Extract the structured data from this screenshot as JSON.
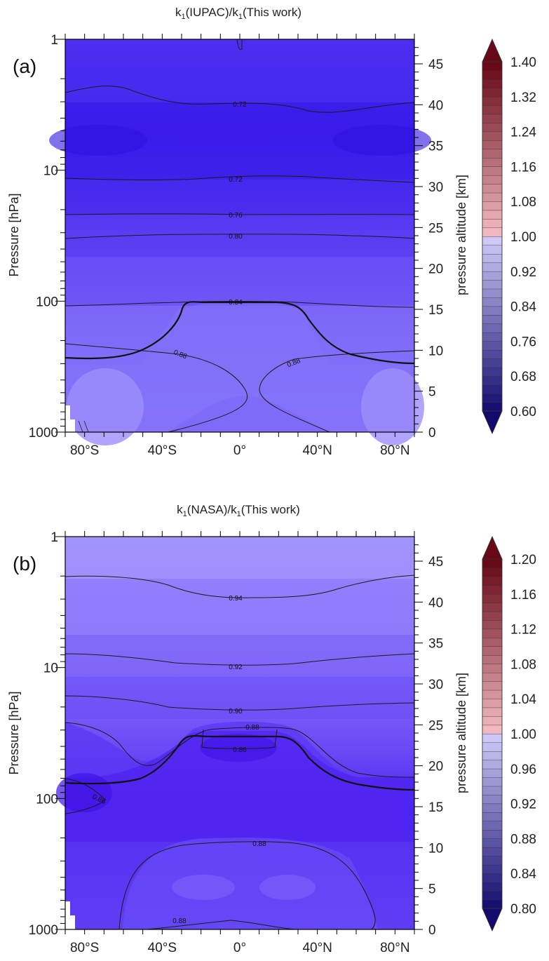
{
  "chart_data": [
    {
      "type": "heatmap",
      "panel_label": "(a)",
      "title_parts": {
        "k": "k",
        "sub": "1",
        "numerator": "(IUPAC)/",
        "denominator": "(This work)"
      },
      "xlabel": "",
      "ylabel": "Pressure [hPa]",
      "y2label": "pressure altitude [km]",
      "xlim": [
        -90,
        90
      ],
      "x_ticks": [
        -80,
        -40,
        0,
        40,
        80
      ],
      "x_tick_labels": [
        "80°S",
        "40°S",
        "0°",
        "40°N",
        "80°N"
      ],
      "ylim": [
        1000,
        1
      ],
      "y_scale": "log",
      "y_ticks": [
        1,
        10,
        100,
        1000
      ],
      "y_tick_labels": [
        "1",
        "10",
        "100",
        "1000"
      ],
      "y2_ticks": [
        0,
        5,
        10,
        15,
        20,
        25,
        30,
        35,
        40,
        45
      ],
      "y2_tick_labels": [
        "0",
        "5",
        "10",
        "15",
        "20",
        "25",
        "30",
        "35",
        "40",
        "45"
      ],
      "colorbar": {
        "min": 0.6,
        "max": 1.4,
        "step": 0.02,
        "tick_values": [
          0.6,
          0.68,
          0.76,
          0.84,
          0.92,
          1.0,
          1.08,
          1.16,
          1.24,
          1.32,
          1.4
        ],
        "tick_labels": [
          "0.60",
          "0.68",
          "0.76",
          "0.84",
          "0.92",
          "1.00",
          "1.08",
          "1.16",
          "1.24",
          "1.32",
          "1.40"
        ]
      },
      "contour_labels": [
        "0.72",
        "0.72",
        "0.76",
        "0.80",
        "0.84",
        "0.88",
        "0.88"
      ],
      "field_description_values": {
        "top": 0.71,
        "mid_strat": 0.78,
        "tropopause": 0.84,
        "troposphere": 0.88,
        "polar_surface": 0.9
      }
    },
    {
      "type": "heatmap",
      "panel_label": "(b)",
      "title_parts": {
        "k": "k",
        "sub": "1",
        "numerator": "(NASA)/",
        "denominator": "(This work)"
      },
      "xlabel": "",
      "ylabel": "Pressure [hPa]",
      "y2label": "pressure altitude [km]",
      "xlim": [
        -90,
        90
      ],
      "x_ticks": [
        -80,
        -40,
        0,
        40,
        80
      ],
      "x_tick_labels": [
        "80°S",
        "40°S",
        "0°",
        "40°N",
        "80°N"
      ],
      "ylim": [
        1000,
        1
      ],
      "y_scale": "log",
      "y_ticks": [
        1,
        10,
        100,
        1000
      ],
      "y_tick_labels": [
        "1",
        "10",
        "100",
        "1000"
      ],
      "y2_ticks": [
        0,
        5,
        10,
        15,
        20,
        25,
        30,
        35,
        40,
        45
      ],
      "y2_tick_labels": [
        "0",
        "5",
        "10",
        "15",
        "20",
        "25",
        "30",
        "35",
        "40",
        "45"
      ],
      "colorbar": {
        "min": 0.8,
        "max": 1.2,
        "step": 0.01,
        "tick_values": [
          0.8,
          0.84,
          0.88,
          0.92,
          0.96,
          1.0,
          1.04,
          1.08,
          1.12,
          1.16,
          1.2
        ],
        "tick_labels": [
          "0.80",
          "0.84",
          "0.88",
          "0.92",
          "0.96",
          "1.00",
          "1.04",
          "1.08",
          "1.12",
          "1.16",
          "1.20"
        ]
      },
      "contour_labels": [
        "0.94",
        "0.92",
        "0.90",
        "0.88",
        "0.86",
        "0.86",
        "0.88",
        "0.88"
      ],
      "field_description_values": {
        "top": 0.945,
        "mid_strat": 0.91,
        "tropopause": 0.865,
        "troposphere": 0.895,
        "polar_surface": 0.9
      }
    }
  ]
}
